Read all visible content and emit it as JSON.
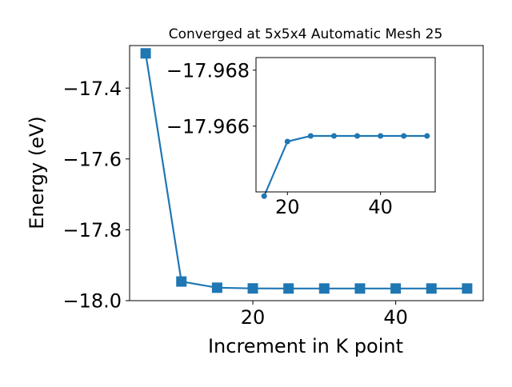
{
  "chart_data": [
    {
      "type": "line",
      "title": "Converged at 5x5x4 Automatic Mesh 25",
      "xlabel": "Increment in K point",
      "ylabel": "Energy (eV)",
      "x": [
        5,
        10,
        15,
        20,
        25,
        30,
        35,
        40,
        45,
        50
      ],
      "series": [
        {
          "values": [
            -17.302,
            -17.946,
            -17.9635,
            -17.9655,
            -17.9657,
            -17.9657,
            -17.9657,
            -17.9657,
            -17.9657,
            -17.9657
          ],
          "color": "#1f77b4",
          "marker": "square"
        }
      ],
      "xlim": [
        2.75,
        52.25
      ],
      "ylim": [
        -18.0,
        -17.28
      ],
      "xticks": [
        20,
        40
      ],
      "xtick_labels": [
        "20",
        "40"
      ],
      "yticks": [
        -18.0,
        -17.8,
        -17.6,
        -17.4
      ],
      "ytick_labels": [
        "−18.0",
        "−17.8",
        "−17.6",
        "−17.4"
      ],
      "grid": false,
      "legend": "none"
    },
    {
      "type": "line",
      "title": "",
      "xlabel": "",
      "ylabel": "",
      "x": [
        15,
        20,
        25,
        30,
        35,
        40,
        45,
        50
      ],
      "series": [
        {
          "values": [
            -17.9635,
            -17.96545,
            -17.96565,
            -17.96565,
            -17.96565,
            -17.96565,
            -17.96565,
            -17.96565
          ],
          "color": "#1f77b4",
          "marker": "circle"
        }
      ],
      "xlim": [
        13.25,
        51.75
      ],
      "ylim": [
        -17.96365,
        -17.96845
      ],
      "xticks": [
        20,
        40
      ],
      "xtick_labels": [
        "20",
        "40"
      ],
      "yticks": [
        -17.966,
        -17.968
      ],
      "ytick_labels": [
        "−17.966",
        "−17.968"
      ],
      "grid": false,
      "legend": "none"
    }
  ]
}
